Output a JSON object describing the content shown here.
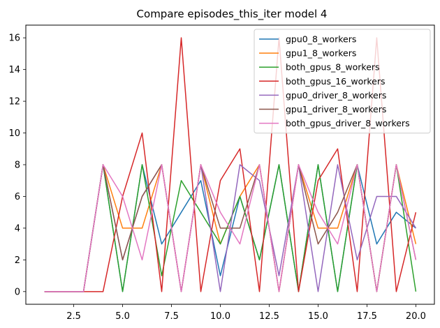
{
  "chart_data": {
    "type": "line",
    "title": "Compare episodes_this_iter model 4",
    "xlabel": "",
    "ylabel": "",
    "xlim": [
      0.05,
      20.95
    ],
    "ylim": [
      -0.8,
      16.8
    ],
    "xticks": [
      2.5,
      5.0,
      7.5,
      10.0,
      12.5,
      15.0,
      17.5,
      20.0
    ],
    "xtick_labels": [
      "2.5",
      "5.0",
      "7.5",
      "10.0",
      "12.5",
      "15.0",
      "17.5",
      "20.0"
    ],
    "yticks": [
      0,
      2,
      4,
      6,
      8,
      10,
      12,
      14,
      16
    ],
    "ytick_labels": [
      "0",
      "2",
      "4",
      "6",
      "8",
      "10",
      "12",
      "14",
      "16"
    ],
    "grid": false,
    "legend_position": "top-right",
    "x": [
      1,
      2,
      3,
      4,
      5,
      6,
      7,
      8,
      9,
      10,
      11,
      12,
      13,
      14,
      15,
      16,
      17,
      18,
      19,
      20
    ],
    "series": [
      {
        "name": "gpu0_8_workers",
        "color": "#1f77b4",
        "values": [
          0,
          0,
          0,
          8,
          0,
          8,
          3,
          5,
          7,
          1,
          6,
          2,
          8,
          0,
          8,
          0,
          8,
          3,
          5,
          4
        ]
      },
      {
        "name": "gpu1_8_workers",
        "color": "#ff7f0e",
        "values": [
          0,
          0,
          0,
          8,
          4,
          4,
          8,
          0,
          8,
          3,
          6,
          8,
          0,
          8,
          4,
          4,
          8,
          0,
          8,
          3
        ]
      },
      {
        "name": "both_gpus_8_workers",
        "color": "#2ca02c",
        "values": [
          0,
          0,
          0,
          8,
          0,
          8,
          1,
          7,
          5,
          3,
          6,
          2,
          8,
          0,
          8,
          0,
          8,
          0,
          8,
          0
        ]
      },
      {
        "name": "both_gpus_16_workers",
        "color": "#d62728",
        "values": [
          0,
          0,
          0,
          0,
          6,
          10,
          0,
          16,
          0,
          7,
          9,
          0,
          16,
          0,
          7,
          9,
          0,
          16,
          0,
          5
        ]
      },
      {
        "name": "gpu0_driver_8_workers",
        "color": "#9467bd",
        "values": [
          0,
          0,
          0,
          8,
          2,
          6,
          8,
          0,
          8,
          0,
          8,
          7,
          1,
          8,
          0,
          8,
          2,
          6,
          6,
          4
        ]
      },
      {
        "name": "gpu1_driver_8_workers",
        "color": "#8c564b",
        "values": [
          0,
          0,
          0,
          8,
          2,
          6,
          8,
          0,
          8,
          4,
          4,
          8,
          0,
          8,
          3,
          5,
          8,
          0,
          8,
          2
        ]
      },
      {
        "name": "both_gpus_driver_8_workers",
        "color": "#e377c2",
        "values": [
          0,
          0,
          0,
          8,
          6,
          2,
          8,
          0,
          8,
          5,
          3,
          8,
          0,
          8,
          5,
          3,
          8,
          0,
          8,
          2
        ]
      }
    ]
  }
}
